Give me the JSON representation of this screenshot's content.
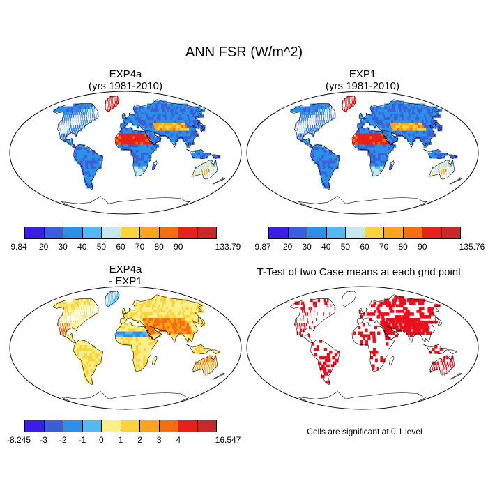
{
  "title": "ANN FSR (W/m^2)",
  "panels": [
    {
      "title_line1": "EXP4a",
      "title_line2": "(yrs 1981-2010)"
    },
    {
      "title_line1": "EXP1",
      "title_line2": "(yrs 1981-2010)"
    },
    {
      "title_line1": "EXP4a",
      "title_line2": "- EXP1"
    },
    {
      "title_line1": "T-Test of two Case means at each grid point",
      "title_line2": ""
    }
  ],
  "colorbars": [
    {
      "labels": [
        "9.84",
        "20",
        "30",
        "40",
        "50",
        "60",
        "70",
        "80",
        "90",
        "133.79"
      ],
      "colors": [
        "#3a1ee6",
        "#3a5fd6",
        "#2c8fe8",
        "#55b8f0",
        "#c8e8f0",
        "#fbd43c",
        "#fba41c",
        "#f46f12",
        "#e8201c",
        "#c82828"
      ]
    },
    {
      "labels": [
        "9.87",
        "20",
        "30",
        "40",
        "50",
        "60",
        "70",
        "80",
        "90",
        "135.76"
      ],
      "colors": [
        "#3a1ee6",
        "#3a5fd6",
        "#2c8fe8",
        "#55b8f0",
        "#c8e8f0",
        "#fbd43c",
        "#fba41c",
        "#f46f12",
        "#e8201c",
        "#c82828"
      ]
    },
    {
      "labels": [
        "-8.245",
        "-3",
        "-2",
        "-1",
        "0",
        "1",
        "2",
        "3",
        "4",
        "16.547"
      ],
      "colors": [
        "#3a1ee6",
        "#3a5fd6",
        "#2c8fe8",
        "#55b8f0",
        "#fbef8c",
        "#fbd43c",
        "#fba41c",
        "#f46f12",
        "#e8201c",
        "#c82828"
      ]
    }
  ],
  "significance_note": "Cells are significant at 0.1 level",
  "significance_color": "#e8101c"
}
